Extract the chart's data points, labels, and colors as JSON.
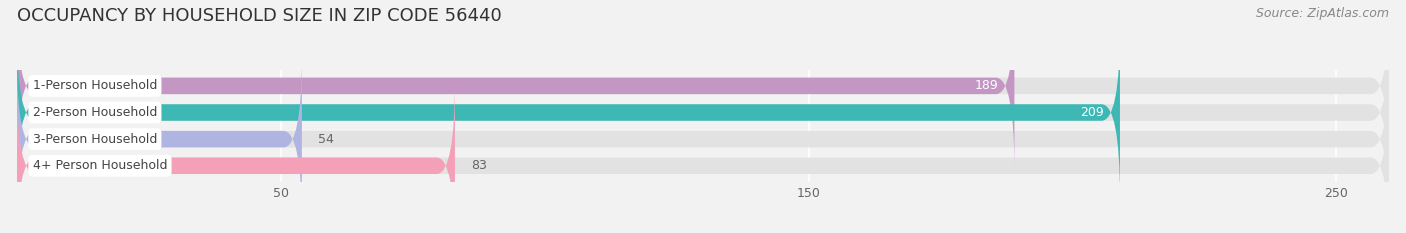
{
  "title": "OCCUPANCY BY HOUSEHOLD SIZE IN ZIP CODE 56440",
  "source": "Source: ZipAtlas.com",
  "categories": [
    "1-Person Household",
    "2-Person Household",
    "3-Person Household",
    "4+ Person Household"
  ],
  "values": [
    189,
    209,
    54,
    83
  ],
  "bar_colors": [
    "#c496c4",
    "#3db8b4",
    "#b0b4e0",
    "#f4a0b8"
  ],
  "background_color": "#f2f2f2",
  "bar_bg_color": "#e2e2e2",
  "xlim": [
    0,
    260
  ],
  "xticks": [
    50,
    150,
    250
  ],
  "title_fontsize": 13,
  "source_fontsize": 9,
  "bar_label_fontsize": 9,
  "cat_label_fontsize": 9,
  "value_inside_color": "#ffffff",
  "value_outside_color": "#666666"
}
